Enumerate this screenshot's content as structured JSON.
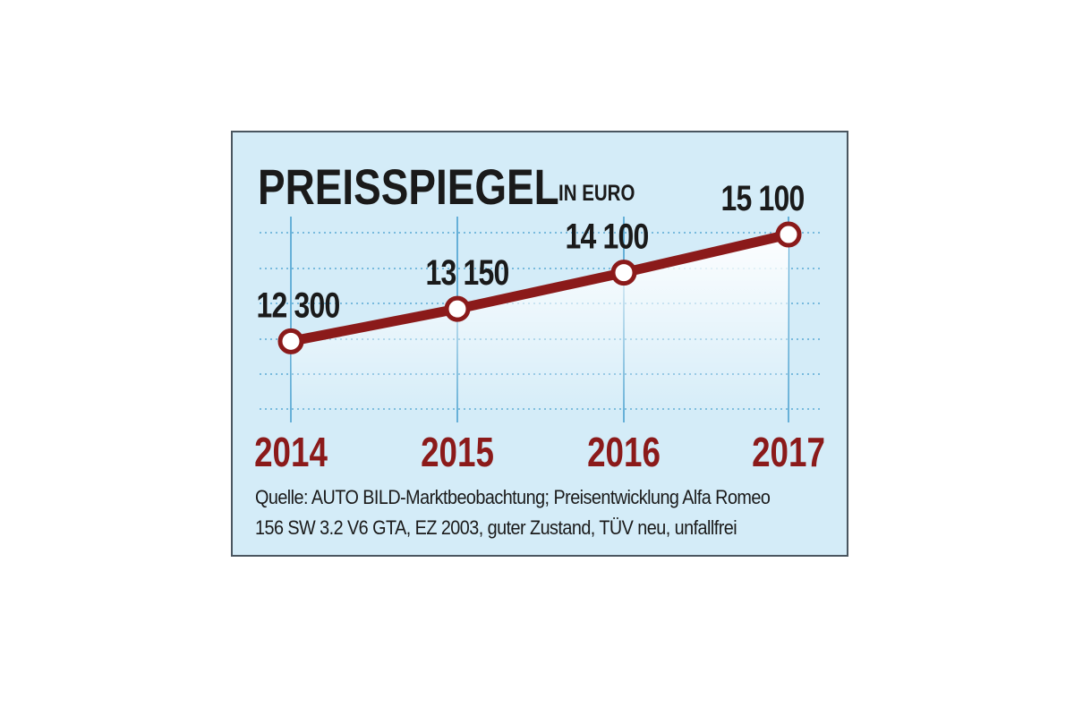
{
  "title": "PREISSPIEGEL",
  "subtitle": "IN EURO",
  "source": {
    "line1": "Quelle: AUTO BILD-Marktbeobachtung; Preisentwicklung Alfa Romeo",
    "line2": "156 SW 3.2 V6 GTA, EZ 2003, guter Zustand, TÜV neu, unfallfrei"
  },
  "colors": {
    "background": "#d4ecf8",
    "line": "#8b1a1a",
    "year_labels": "#8b1a1a",
    "gridlines": "#5aaad4",
    "text": "#1a1a1a"
  },
  "chart_data": {
    "type": "line",
    "title": "PREISSPIEGEL",
    "subtitle": "IN EURO",
    "categories": [
      "2014",
      "2015",
      "2016",
      "2017"
    ],
    "values": [
      12300,
      13150,
      14100,
      15100
    ],
    "value_labels": [
      "12 300",
      "13 150",
      "14 100",
      "15 100"
    ],
    "ylim": [
      10500,
      15500
    ],
    "grid": true,
    "legend": "none"
  }
}
